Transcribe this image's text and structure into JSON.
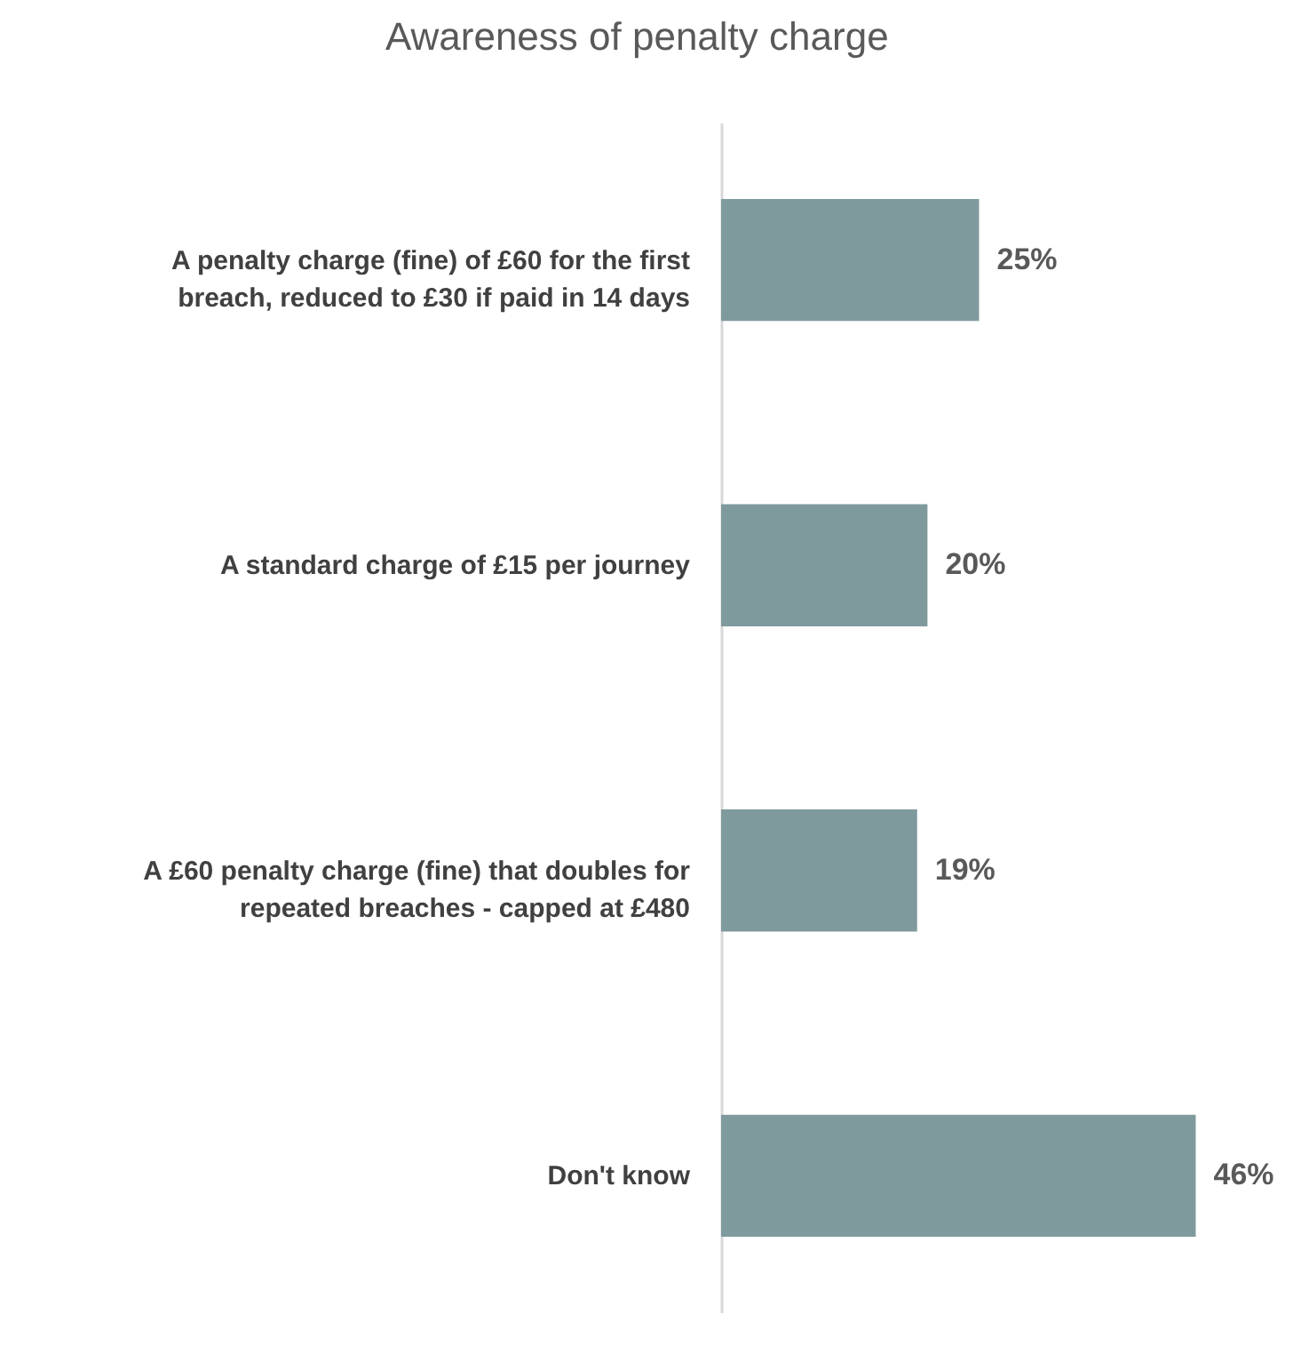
{
  "chart_data": {
    "type": "bar",
    "orientation": "horizontal",
    "title": "Awareness of penalty charge",
    "categories": [
      "A penalty charge (fine) of £60 for the first breach, reduced to £30 if paid in 14 days",
      "A standard charge of £15 per journey",
      "A £60 penalty charge (fine) that doubles for repeated breaches - capped at £480",
      "Don't know"
    ],
    "values": [
      25,
      20,
      19,
      46
    ],
    "value_labels": [
      "25%",
      "20%",
      "19%",
      "46%"
    ],
    "color": "#7f9a9d"
  }
}
